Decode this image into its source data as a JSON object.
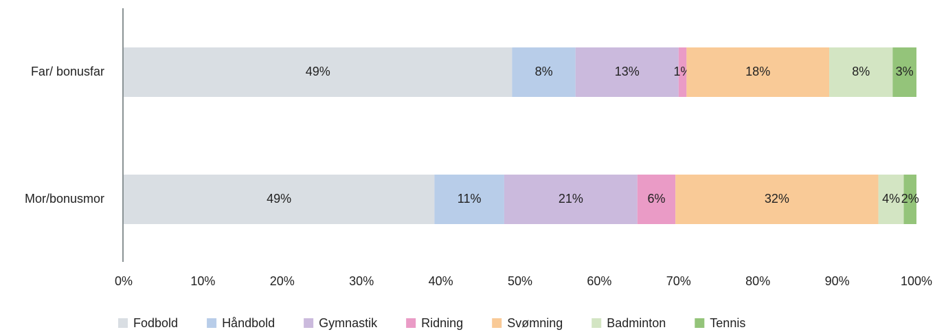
{
  "chart_data": {
    "type": "stacked_barh_percent",
    "categories": [
      "Far/ bonusfar",
      "Mor/bonusmor"
    ],
    "series": [
      {
        "name": "Fodbold",
        "color": "#d9dee3",
        "values": [
          49,
          49
        ],
        "value_labels": [
          "49%",
          "49%"
        ]
      },
      {
        "name": "Håndbold",
        "color": "#b8cde9",
        "values": [
          8,
          11
        ],
        "value_labels": [
          "8%",
          "11%"
        ]
      },
      {
        "name": "Gymnastik",
        "color": "#cbbadd",
        "values": [
          13,
          21
        ],
        "value_labels": [
          "13%",
          "21%"
        ]
      },
      {
        "name": "Ridning",
        "color": "#ea9bc6",
        "values": [
          1,
          6
        ],
        "value_labels": [
          "1%",
          "6%"
        ]
      },
      {
        "name": "Svømning",
        "color": "#f9ca97",
        "values": [
          18,
          32
        ],
        "value_labels": [
          "18%",
          "32%"
        ]
      },
      {
        "name": "Badminton",
        "color": "#d3e5c3",
        "values": [
          8,
          4
        ],
        "value_labels": [
          "8%",
          "4%"
        ]
      },
      {
        "name": "Tennis",
        "color": "#94c47a",
        "values": [
          3,
          2
        ],
        "value_labels": [
          "3%",
          "2%"
        ]
      }
    ],
    "xlim": [
      0,
      100
    ],
    "xticks": [
      {
        "value": 0,
        "label": "0%"
      },
      {
        "value": 10,
        "label": "10%"
      },
      {
        "value": 20,
        "label": "20%"
      },
      {
        "value": 30,
        "label": "30%"
      },
      {
        "value": 40,
        "label": "40%"
      },
      {
        "value": 50,
        "label": "50%"
      },
      {
        "value": 60,
        "label": "60%"
      },
      {
        "value": 70,
        "label": "70%"
      },
      {
        "value": 80,
        "label": "80%"
      },
      {
        "value": 90,
        "label": "90%"
      },
      {
        "value": 100,
        "label": "100%"
      }
    ],
    "legend": "bottom"
  }
}
